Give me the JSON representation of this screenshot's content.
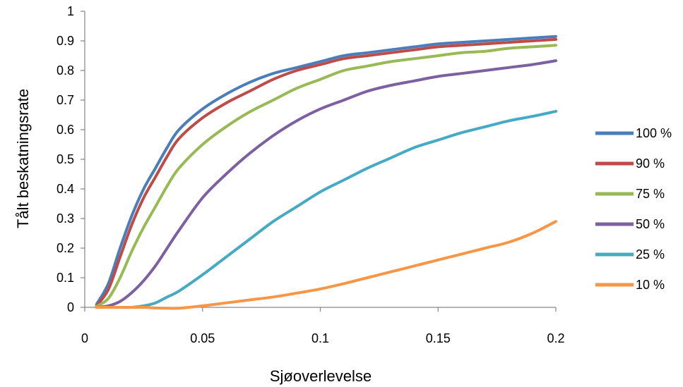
{
  "chart_data": {
    "type": "line",
    "xlabel": "Sjøoverlevelse",
    "ylabel": "Tålt beskatningsrate",
    "xlim": [
      0,
      0.2
    ],
    "ylim": [
      0,
      1
    ],
    "xticks": [
      0,
      0.05,
      0.1,
      0.15,
      0.2
    ],
    "xtick_labels": [
      "0",
      "0.05",
      "0.1",
      "0.15",
      "0.2"
    ],
    "yticks": [
      0,
      0.1,
      0.2,
      0.3,
      0.4,
      0.5,
      0.6,
      0.7,
      0.8,
      0.9,
      1
    ],
    "ytick_labels": [
      "0",
      "0.1",
      "0.2",
      "0.3",
      "0.4",
      "0.5",
      "0.6",
      "0.7",
      "0.8",
      "0.9",
      "1"
    ],
    "grid": false,
    "legend_position": "right",
    "x": [
      0.005,
      0.01,
      0.015,
      0.02,
      0.025,
      0.03,
      0.035,
      0.04,
      0.05,
      0.06,
      0.07,
      0.08,
      0.09,
      0.1,
      0.11,
      0.12,
      0.13,
      0.14,
      0.15,
      0.16,
      0.17,
      0.18,
      0.19,
      0.2
    ],
    "series": [
      {
        "name": "100 %",
        "color": "#4A7EBB",
        "values": [
          0.01,
          0.08,
          0.2,
          0.31,
          0.4,
          0.47,
          0.54,
          0.6,
          0.67,
          0.72,
          0.76,
          0.79,
          0.81,
          0.83,
          0.85,
          0.86,
          0.87,
          0.88,
          0.89,
          0.895,
          0.9,
          0.905,
          0.91,
          0.915
        ]
      },
      {
        "name": "90 %",
        "color": "#BE4B48",
        "values": [
          0.005,
          0.06,
          0.17,
          0.28,
          0.37,
          0.44,
          0.51,
          0.57,
          0.64,
          0.69,
          0.73,
          0.77,
          0.8,
          0.82,
          0.84,
          0.85,
          0.86,
          0.87,
          0.88,
          0.885,
          0.89,
          0.895,
          0.9,
          0.905
        ]
      },
      {
        "name": "75 %",
        "color": "#98B954",
        "values": [
          0.003,
          0.03,
          0.1,
          0.19,
          0.27,
          0.34,
          0.41,
          0.47,
          0.55,
          0.61,
          0.66,
          0.7,
          0.74,
          0.77,
          0.8,
          0.815,
          0.83,
          0.84,
          0.85,
          0.86,
          0.865,
          0.875,
          0.88,
          0.885
        ]
      },
      {
        "name": "50 %",
        "color": "#7D60A0",
        "values": [
          0.0,
          0.005,
          0.02,
          0.05,
          0.09,
          0.14,
          0.2,
          0.26,
          0.37,
          0.45,
          0.52,
          0.58,
          0.63,
          0.67,
          0.7,
          0.73,
          0.75,
          0.765,
          0.78,
          0.79,
          0.8,
          0.81,
          0.82,
          0.833
        ]
      },
      {
        "name": "25 %",
        "color": "#46AAC5",
        "values": [
          0.0,
          0.0,
          0.0,
          0.0,
          0.005,
          0.015,
          0.035,
          0.055,
          0.11,
          0.17,
          0.23,
          0.29,
          0.34,
          0.39,
          0.43,
          0.47,
          0.505,
          0.54,
          0.565,
          0.59,
          0.61,
          0.63,
          0.645,
          0.662
        ]
      },
      {
        "name": "10 %",
        "color": "#F79646",
        "values": [
          0.0,
          0.0,
          0.0,
          0.0,
          0.0,
          -0.002,
          -0.003,
          -0.003,
          0.005,
          0.015,
          0.025,
          0.035,
          0.048,
          0.062,
          0.08,
          0.1,
          0.12,
          0.14,
          0.16,
          0.18,
          0.2,
          0.22,
          0.25,
          0.29
        ]
      }
    ]
  }
}
